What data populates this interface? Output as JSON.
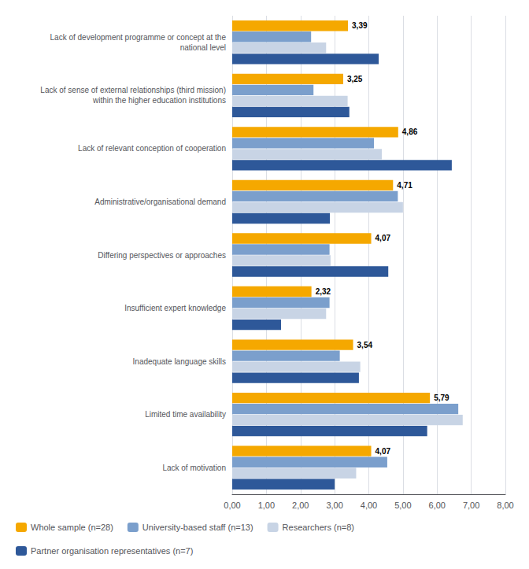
{
  "chart_data": {
    "type": "bar",
    "orientation": "horizontal",
    "categories": [
      "Lack of development programme or concept at the\nnational level",
      "Lack of sense of external relationships (third mission)\nwithin the higher education institutions",
      "Lack of relevant conception of cooperation",
      "Administrative/organisational demand",
      "Differing perspectives or approaches",
      "Insufficient expert knowledge",
      "Inadequate language skills",
      "Limited time availability",
      "Lack of motivation"
    ],
    "series": [
      {
        "name": "Whole sample (n=28)",
        "color": "#F5A800",
        "values": [
          3.39,
          3.25,
          4.86,
          4.71,
          4.07,
          2.32,
          3.54,
          5.79,
          4.07
        ],
        "data_labels": true,
        "value_labels": [
          "3,39",
          "3,25",
          "4,86",
          "4,71",
          "4,07",
          "2,32",
          "3,54",
          "5,79",
          "4,07"
        ]
      },
      {
        "name": "University-based staff (n=13)",
        "color": "#7B9FCC",
        "values": [
          2.31,
          2.38,
          4.15,
          4.85,
          2.85,
          2.85,
          3.15,
          6.62,
          4.54
        ]
      },
      {
        "name": "Researchers (n=8)",
        "color": "#C8D4E5",
        "values": [
          2.75,
          3.38,
          4.38,
          5.0,
          2.88,
          2.75,
          3.75,
          6.75,
          3.63
        ]
      },
      {
        "name": "Partner organisation representatives (n=7)",
        "color": "#2E5899",
        "values": [
          4.29,
          3.43,
          6.43,
          2.86,
          4.57,
          1.43,
          3.71,
          5.71,
          3.0
        ]
      }
    ],
    "xlim": [
      0,
      8.0
    ],
    "xticks": [
      {
        "value": 0.0,
        "label": "0,00"
      },
      {
        "value": 1.0,
        "label": "1,00"
      },
      {
        "value": 2.0,
        "label": "2,00"
      },
      {
        "value": 3.0,
        "label": "3,00"
      },
      {
        "value": 4.0,
        "label": "4,00"
      },
      {
        "value": 5.0,
        "label": "5,00"
      },
      {
        "value": 6.0,
        "label": "6,00"
      },
      {
        "value": 7.0,
        "label": "7,00"
      },
      {
        "value": 8.0,
        "label": "8,00"
      }
    ],
    "grid": true,
    "legend": "bottom"
  }
}
